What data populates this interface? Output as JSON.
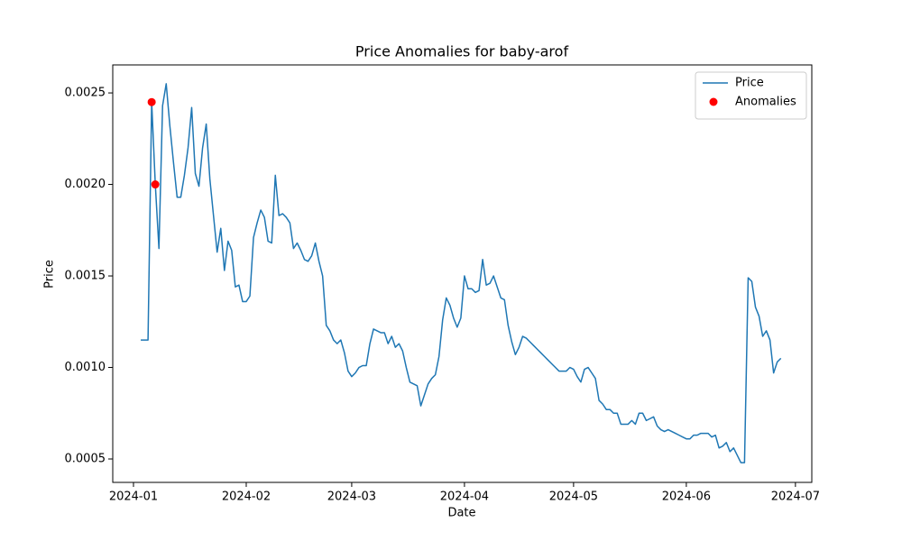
{
  "chart_data": {
    "type": "line",
    "title": "Price Anomalies for baby-arof",
    "xlabel": "Date",
    "ylabel": "Price",
    "xlim": [
      -5.7,
      186.5
    ],
    "ylim": [
      0.000372,
      0.002653
    ],
    "xticks": [
      {
        "value": 0,
        "label": "2024-01"
      },
      {
        "value": 31,
        "label": "2024-02"
      },
      {
        "value": 60,
        "label": "2024-03"
      },
      {
        "value": 91,
        "label": "2024-04"
      },
      {
        "value": 121,
        "label": "2024-05"
      },
      {
        "value": 152,
        "label": "2024-06"
      },
      {
        "value": 182,
        "label": "2024-07"
      }
    ],
    "yticks": [
      0.0005,
      {
        "value": 0.001,
        "label": "0.0010"
      },
      0.0015,
      {
        "value": 0.002,
        "label": "0.0020"
      },
      0.0025
    ],
    "legend": "upper right",
    "grid": false,
    "series": [
      {
        "name": "Price",
        "type": "line",
        "color": "#1f77b4",
        "x": [
          2,
          3,
          4,
          5,
          6,
          7,
          8,
          9,
          10,
          11,
          12,
          13,
          14,
          15,
          16,
          17,
          18,
          19,
          20,
          21,
          22,
          23,
          24,
          25,
          26,
          27,
          28,
          29,
          30,
          31,
          32,
          33,
          34,
          35,
          36,
          37,
          38,
          39,
          40,
          41,
          42,
          43,
          44,
          45,
          46,
          47,
          48,
          49,
          50,
          51,
          52,
          53,
          54,
          55,
          56,
          57,
          58,
          59,
          60,
          61,
          62,
          63,
          64,
          65,
          66,
          67,
          68,
          69,
          70,
          71,
          72,
          73,
          74,
          75,
          76,
          77,
          78,
          79,
          80,
          81,
          82,
          83,
          84,
          85,
          86,
          87,
          88,
          89,
          90,
          91,
          92,
          93,
          94,
          95,
          96,
          97,
          98,
          99,
          100,
          101,
          102,
          103,
          104,
          105,
          106,
          107,
          108,
          109,
          110,
          111,
          112,
          113,
          114,
          115,
          116,
          117,
          118,
          119,
          120,
          121,
          122,
          123,
          124,
          125,
          126,
          127,
          128,
          129,
          130,
          131,
          132,
          133,
          134,
          135,
          136,
          137,
          138,
          139,
          140,
          141,
          142,
          143,
          144,
          145,
          146,
          147,
          148,
          149,
          150,
          151,
          152,
          153,
          154,
          155,
          156,
          157,
          158,
          159,
          160,
          161,
          162,
          163,
          164,
          165,
          166,
          167,
          168,
          169,
          170,
          171,
          172,
          173,
          174,
          175,
          176,
          177,
          178
        ],
        "values": [
          0.00115,
          0.00115,
          0.00115,
          0.00245,
          0.002,
          0.00165,
          0.00243,
          0.00255,
          0.00232,
          0.00212,
          0.00193,
          0.00193,
          0.00205,
          0.0022,
          0.00242,
          0.00206,
          0.00199,
          0.0022,
          0.00233,
          0.00203,
          0.00183,
          0.00163,
          0.00176,
          0.00153,
          0.00169,
          0.00164,
          0.00144,
          0.00145,
          0.00136,
          0.00136,
          0.00139,
          0.00171,
          0.00179,
          0.00186,
          0.00182,
          0.00169,
          0.00168,
          0.00205,
          0.00183,
          0.00184,
          0.00182,
          0.00179,
          0.00165,
          0.00168,
          0.00164,
          0.00159,
          0.00158,
          0.00161,
          0.00168,
          0.00158,
          0.0015,
          0.00123,
          0.0012,
          0.00115,
          0.00113,
          0.00115,
          0.00108,
          0.00098,
          0.00095,
          0.00097,
          0.001,
          0.00101,
          0.00101,
          0.00113,
          0.00121,
          0.0012,
          0.00119,
          0.00119,
          0.00113,
          0.00117,
          0.00111,
          0.00113,
          0.00109,
          0.001,
          0.00092,
          0.00091,
          0.0009,
          0.00079,
          0.00085,
          0.00091,
          0.00094,
          0.00096,
          0.00106,
          0.00126,
          0.00138,
          0.00134,
          0.00127,
          0.00122,
          0.00127,
          0.0015,
          0.00143,
          0.00143,
          0.00141,
          0.00142,
          0.00159,
          0.00145,
          0.00146,
          0.0015,
          0.00144,
          0.00138,
          0.00137,
          0.00123,
          0.00114,
          0.00107,
          0.00111,
          0.00117,
          0.00116,
          0.00114,
          0.00112,
          0.0011,
          0.00108,
          0.00106,
          0.00104,
          0.00102,
          0.001,
          0.00098,
          0.00098,
          0.00098,
          0.001,
          0.00099,
          0.00095,
          0.00092,
          0.00099,
          0.001,
          0.00097,
          0.00094,
          0.00082,
          0.0008,
          0.00077,
          0.00077,
          0.00075,
          0.00075,
          0.00069,
          0.00069,
          0.00069,
          0.00071,
          0.00069,
          0.00075,
          0.00075,
          0.00071,
          0.00072,
          0.00073,
          0.00068,
          0.00066,
          0.00065,
          0.00066,
          0.00065,
          0.00064,
          0.00063,
          0.00062,
          0.00061,
          0.00061,
          0.00063,
          0.00063,
          0.00064,
          0.00064,
          0.00064,
          0.00062,
          0.00063,
          0.00056,
          0.00057,
          0.00059,
          0.00054,
          0.00056,
          0.00052,
          0.00048,
          0.00048,
          0.00149,
          0.00147,
          0.00133,
          0.00128,
          0.00117,
          0.0012,
          0.00115,
          0.00097,
          0.00103,
          0.00105
        ]
      },
      {
        "name": "Anomalies",
        "type": "scatter",
        "color": "#ff0000",
        "x": [
          5,
          6
        ],
        "values": [
          0.00245,
          0.002
        ]
      }
    ]
  }
}
